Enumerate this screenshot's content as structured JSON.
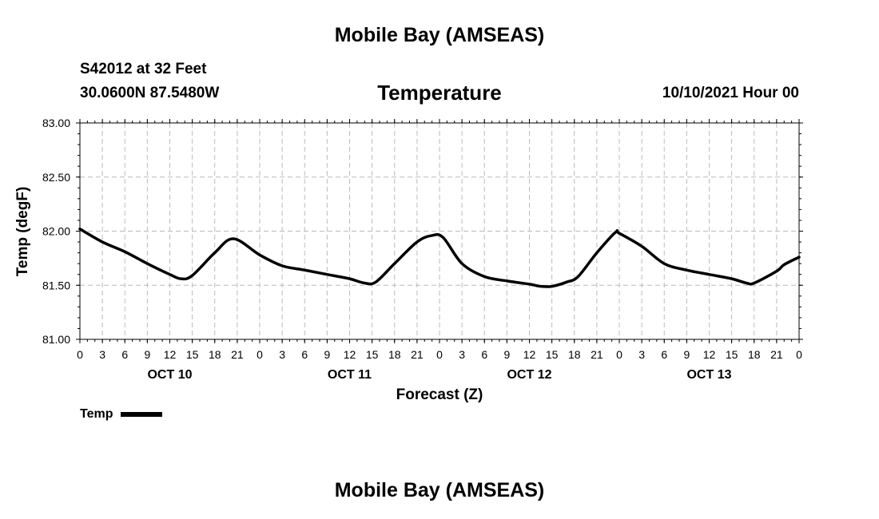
{
  "header": {
    "top_title": "Mobile Bay (AMSEAS)",
    "station": "S42012 at 32 Feet",
    "coords": "30.0600N  87.5480W",
    "datetime": "10/10/2021 Hour 00"
  },
  "footer": {
    "bottom_title": "Mobile Bay (AMSEAS)"
  },
  "legend": {
    "label": "Temp"
  },
  "chart_data": {
    "type": "line",
    "title": "Temperature",
    "xlabel": "Forecast (Z)",
    "ylabel": "Temp (degF)",
    "ylim": [
      81.0,
      83.0
    ],
    "xlim": [
      0,
      96
    ],
    "y_ticks": [
      "81.00",
      "81.50",
      "82.00",
      "82.50",
      "83.00"
    ],
    "y_tick_values": [
      81.0,
      81.5,
      82.0,
      82.5,
      83.0
    ],
    "x_ticks": [
      0,
      3,
      6,
      9,
      12,
      15,
      18,
      21,
      24,
      27,
      30,
      33,
      36,
      39,
      42,
      45,
      48,
      51,
      54,
      57,
      60,
      63,
      66,
      69,
      72,
      75,
      78,
      81,
      84,
      87,
      90,
      93,
      96
    ],
    "x_tick_labels": [
      "0",
      "3",
      "6",
      "9",
      "12",
      "15",
      "18",
      "21",
      "0",
      "3",
      "6",
      "9",
      "12",
      "15",
      "18",
      "21",
      "0",
      "3",
      "6",
      "9",
      "12",
      "15",
      "18",
      "21",
      "0",
      "3",
      "6",
      "9",
      "12",
      "15",
      "18",
      "21",
      "0"
    ],
    "day_labels": [
      {
        "label": "OCT 10",
        "hour": 12
      },
      {
        "label": "OCT 11",
        "hour": 36
      },
      {
        "label": "OCT 12",
        "hour": 60
      },
      {
        "label": "OCT 13",
        "hour": 84
      }
    ],
    "grid": true,
    "series": [
      {
        "name": "Temp",
        "x": [
          0,
          3,
          6,
          9,
          12,
          13.5,
          15,
          18,
          20.5,
          24,
          27,
          30,
          33,
          36,
          38,
          39.5,
          42,
          45,
          47,
          48.5,
          51,
          54,
          57,
          60,
          61.5,
          63,
          65,
          66.5,
          69,
          71.5,
          72,
          75,
          78,
          81,
          84,
          87,
          89,
          90,
          93,
          94,
          96
        ],
        "y": [
          82.02,
          81.9,
          81.81,
          81.7,
          81.6,
          81.56,
          81.59,
          81.8,
          81.93,
          81.78,
          81.68,
          81.64,
          81.6,
          81.56,
          81.52,
          81.53,
          81.7,
          81.9,
          81.96,
          81.94,
          81.7,
          81.58,
          81.54,
          81.51,
          81.49,
          81.49,
          81.53,
          81.58,
          81.8,
          81.99,
          81.98,
          81.86,
          81.7,
          81.64,
          81.6,
          81.56,
          81.52,
          81.52,
          81.63,
          81.69,
          81.76
        ]
      }
    ]
  }
}
